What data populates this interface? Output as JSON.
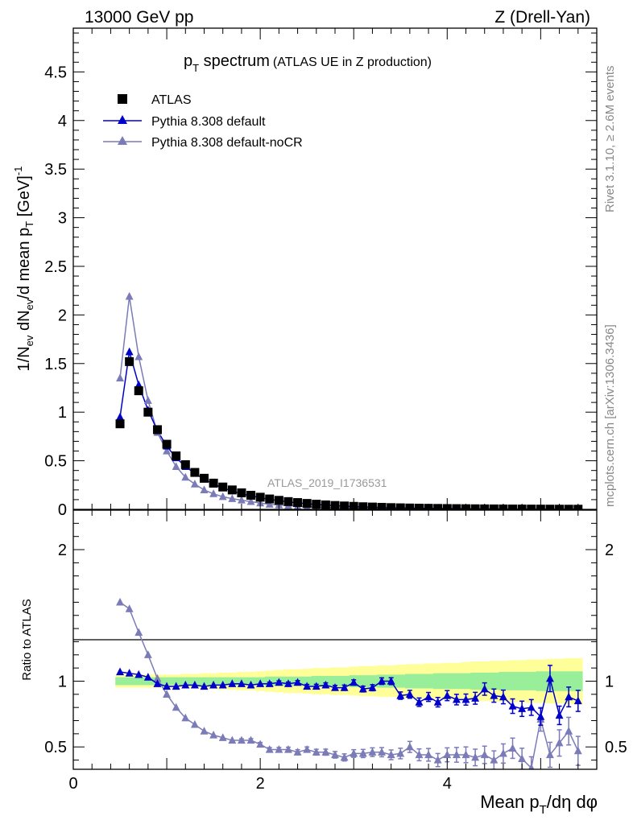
{
  "header": {
    "left": "13000 GeV pp",
    "right": "Z (Drell-Yan)"
  },
  "side_labels": {
    "rivet": "Rivet 3.1.10, ≥ 2.6M events",
    "mcplots": "mcplots.cern.ch [arXiv:1306.3436]"
  },
  "colors": {
    "data": "#000000",
    "default": "#0000cc",
    "nocr": "#7b7bb8",
    "band_inner": "#99ee99",
    "band_outer": "#ffff99",
    "watermark": "#999999"
  },
  "chart_data": [
    {
      "type": "scatter",
      "title_main": "p",
      "title_sub": "T",
      "title_rest": " spectrum",
      "title_paren": "(ATLAS UE in Z production)",
      "ylabel": "1/N_ev dN_ev/d mean p_T [GeV]^-1",
      "watermark": "ATLAS_2019_I1736531",
      "ylim": [
        0,
        4.95
      ],
      "yticks": [
        "0",
        "0.5",
        "1",
        "1.5",
        "2",
        "2.5",
        "3",
        "3.5",
        "4",
        "4.5"
      ],
      "x": [
        0.5,
        0.6,
        0.7,
        0.8,
        0.9,
        1.0,
        1.1,
        1.2,
        1.3,
        1.4,
        1.5,
        1.6,
        1.7,
        1.8,
        1.9,
        2.0,
        2.1,
        2.2,
        2.3,
        2.4,
        2.5,
        2.6,
        2.7,
        2.8,
        2.9,
        3.0,
        3.1,
        3.2,
        3.3,
        3.4,
        3.5,
        3.6,
        3.7,
        3.8,
        3.9,
        4.0,
        4.1,
        4.2,
        4.3,
        4.4,
        4.5,
        4.6,
        4.7,
        4.8,
        4.9,
        5.0,
        5.1,
        5.2,
        5.3,
        5.4
      ],
      "legend": [
        "ATLAS",
        "Pythia 8.308 default",
        "Pythia 8.308 default-noCR"
      ],
      "series": [
        {
          "name": "ATLAS",
          "values": [
            0.88,
            1.52,
            1.22,
            1.0,
            0.82,
            0.67,
            0.55,
            0.46,
            0.38,
            0.32,
            0.27,
            0.23,
            0.2,
            0.17,
            0.145,
            0.125,
            0.107,
            0.093,
            0.08,
            0.07,
            0.061,
            0.053,
            0.046,
            0.04,
            0.035,
            0.031,
            0.027,
            0.024,
            0.021,
            0.018,
            0.016,
            0.014,
            0.0125,
            0.011,
            0.0098,
            0.0087,
            0.0077,
            0.0068,
            0.006,
            0.0053,
            0.0047,
            0.0042,
            0.0037,
            0.0033,
            0.0029,
            0.0026,
            0.0023,
            0.002,
            0.0018,
            0.0016
          ]
        },
        {
          "name": "Pythia 8.308 default",
          "values": [
            0.95,
            1.62,
            1.28,
            1.02,
            0.81,
            0.65,
            0.53,
            0.44,
            0.37,
            0.31,
            0.26,
            0.22,
            0.19,
            0.16,
            0.14,
            0.12,
            0.103,
            0.09,
            0.077,
            0.067,
            0.058,
            0.05,
            0.044,
            0.038,
            0.033,
            0.029,
            0.026,
            0.023,
            0.019,
            0.017,
            0.015,
            0.013,
            0.011,
            0.01,
            0.009,
            0.008,
            0.007,
            0.006,
            0.005,
            0.0048,
            0.004,
            0.0037,
            0.0032,
            0.0028,
            0.0025,
            0.0022,
            0.002,
            0.0017,
            0.0015,
            0.0013
          ]
        },
        {
          "name": "Pythia 8.308 default-noCR",
          "values": [
            1.35,
            2.19,
            1.57,
            1.12,
            0.79,
            0.6,
            0.44,
            0.33,
            0.26,
            0.2,
            0.16,
            0.13,
            0.11,
            0.095,
            0.08,
            0.065,
            0.052,
            0.045,
            0.038,
            0.032,
            0.028,
            0.024,
            0.02,
            0.018,
            0.015,
            0.013,
            0.012,
            0.011,
            0.009,
            0.008,
            0.007,
            0.006,
            0.005,
            0.0045,
            0.004,
            0.0035,
            0.003,
            0.0028,
            0.0025,
            0.0021,
            0.0018,
            0.0016,
            0.0014,
            0.0012,
            0.0011,
            0.001,
            0.0009,
            0.0008,
            0.0007,
            0.0006
          ]
        }
      ]
    },
    {
      "type": "scatter",
      "ylabel": "Ratio to ATLAS",
      "xlabel": "Mean p_T/dη dφ",
      "xlim": [
        0,
        5.6
      ],
      "ylim": [
        0.33,
        2.3
      ],
      "xticks": [
        "0",
        "2",
        "4"
      ],
      "yticks": [
        "0.5",
        "1",
        "2"
      ],
      "x": [
        0.5,
        0.6,
        0.7,
        0.8,
        0.9,
        1.0,
        1.1,
        1.2,
        1.3,
        1.4,
        1.5,
        1.6,
        1.7,
        1.8,
        1.9,
        2.0,
        2.1,
        2.2,
        2.3,
        2.4,
        2.5,
        2.6,
        2.7,
        2.8,
        2.9,
        3.0,
        3.1,
        3.2,
        3.3,
        3.4,
        3.5,
        3.6,
        3.7,
        3.8,
        3.9,
        4.0,
        4.1,
        4.2,
        4.3,
        4.4,
        4.5,
        4.6,
        4.7,
        4.8,
        4.9,
        5.0,
        5.1,
        5.2,
        5.3,
        5.4
      ],
      "band_inner_halfwidth": [
        0.03,
        0.03,
        0.03,
        0.03,
        0.03,
        0.03,
        0.03,
        0.03,
        0.03,
        0.03,
        0.03,
        0.03,
        0.03,
        0.03,
        0.03,
        0.03,
        0.035,
        0.035,
        0.035,
        0.035,
        0.035,
        0.04,
        0.04,
        0.04,
        0.04,
        0.045,
        0.045,
        0.045,
        0.05,
        0.05,
        0.05,
        0.055,
        0.055,
        0.055,
        0.06,
        0.06,
        0.06,
        0.06,
        0.065,
        0.065,
        0.065,
        0.07,
        0.07,
        0.07,
        0.07,
        0.075,
        0.075,
        0.075,
        0.075,
        0.075
      ],
      "band_outer_halfwidth": [
        0.05,
        0.05,
        0.05,
        0.05,
        0.05,
        0.05,
        0.05,
        0.055,
        0.055,
        0.06,
        0.06,
        0.065,
        0.065,
        0.07,
        0.07,
        0.075,
        0.08,
        0.085,
        0.09,
        0.09,
        0.095,
        0.1,
        0.1,
        0.105,
        0.105,
        0.11,
        0.115,
        0.115,
        0.12,
        0.12,
        0.125,
        0.13,
        0.13,
        0.135,
        0.135,
        0.14,
        0.14,
        0.145,
        0.15,
        0.15,
        0.155,
        0.155,
        0.16,
        0.16,
        0.165,
        0.165,
        0.17,
        0.17,
        0.175,
        0.175
      ],
      "series": [
        {
          "name": "Pythia 8.308 default",
          "values": [
            1.07,
            1.06,
            1.05,
            1.03,
            0.98,
            0.96,
            0.96,
            0.97,
            0.97,
            0.96,
            0.97,
            0.97,
            0.98,
            0.98,
            0.97,
            0.98,
            0.98,
            0.99,
            0.98,
            0.99,
            0.96,
            0.96,
            0.97,
            0.95,
            0.95,
            0.99,
            0.94,
            0.95,
            1.0,
            1.0,
            0.89,
            0.9,
            0.84,
            0.88,
            0.84,
            0.89,
            0.86,
            0.86,
            0.87,
            0.94,
            0.89,
            0.88,
            0.81,
            0.79,
            0.8,
            0.73,
            1.02,
            0.74,
            0.88,
            0.85
          ],
          "errors": [
            0.005,
            0.005,
            0.005,
            0.005,
            0.005,
            0.005,
            0.005,
            0.006,
            0.006,
            0.007,
            0.008,
            0.008,
            0.009,
            0.01,
            0.01,
            0.01,
            0.012,
            0.012,
            0.013,
            0.014,
            0.015,
            0.016,
            0.017,
            0.018,
            0.02,
            0.02,
            0.022,
            0.023,
            0.025,
            0.026,
            0.028,
            0.03,
            0.032,
            0.034,
            0.036,
            0.038,
            0.04,
            0.042,
            0.045,
            0.047,
            0.05,
            0.052,
            0.055,
            0.058,
            0.06,
            0.065,
            0.1,
            0.07,
            0.075,
            0.08
          ]
        },
        {
          "name": "Pythia 8.308 default-noCR",
          "values": [
            1.6,
            1.55,
            1.37,
            1.2,
            1.02,
            0.9,
            0.8,
            0.72,
            0.67,
            0.62,
            0.59,
            0.57,
            0.55,
            0.55,
            0.55,
            0.52,
            0.48,
            0.48,
            0.48,
            0.46,
            0.48,
            0.46,
            0.46,
            0.44,
            0.42,
            0.45,
            0.45,
            0.46,
            0.46,
            0.44,
            0.45,
            0.5,
            0.44,
            0.44,
            0.4,
            0.44,
            0.44,
            0.44,
            0.42,
            0.44,
            0.4,
            0.45,
            0.49,
            0.41,
            0.34,
            0.71,
            0.44,
            0.53,
            0.62,
            0.47
          ],
          "errors": [
            0.005,
            0.005,
            0.005,
            0.005,
            0.005,
            0.005,
            0.005,
            0.006,
            0.006,
            0.007,
            0.008,
            0.009,
            0.01,
            0.012,
            0.013,
            0.014,
            0.015,
            0.016,
            0.018,
            0.019,
            0.02,
            0.022,
            0.023,
            0.025,
            0.027,
            0.029,
            0.031,
            0.033,
            0.035,
            0.037,
            0.04,
            0.042,
            0.045,
            0.048,
            0.05,
            0.053,
            0.056,
            0.06,
            0.063,
            0.066,
            0.07,
            0.073,
            0.077,
            0.08,
            0.085,
            0.09,
            0.095,
            0.1,
            0.105,
            0.11
          ]
        }
      ]
    }
  ]
}
